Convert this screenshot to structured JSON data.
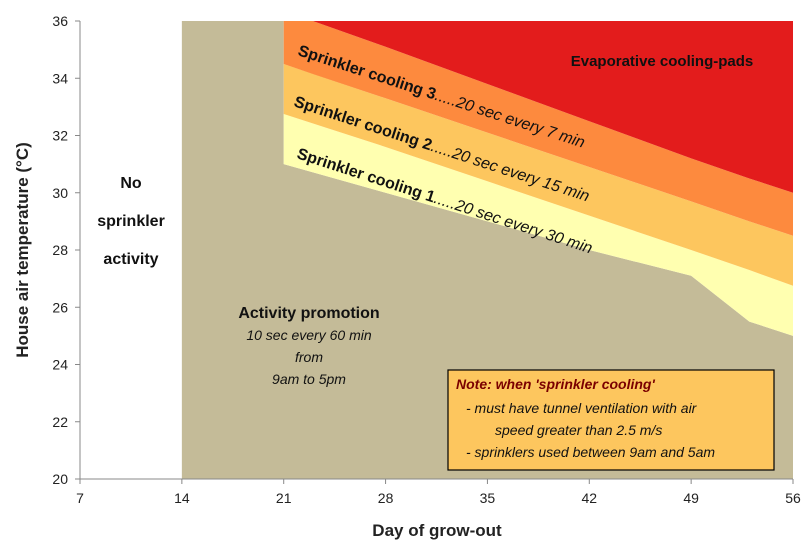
{
  "chart_data": {
    "type": "area",
    "x_label": "Day of grow-out",
    "y_label": "House air temperature (°C)",
    "xlim": [
      7,
      56
    ],
    "xticks": [
      7,
      14,
      21,
      28,
      35,
      42,
      49,
      56
    ],
    "ylim": [
      20,
      36
    ],
    "yticks": [
      20,
      22,
      24,
      26,
      28,
      30,
      32,
      34,
      36
    ],
    "regions": [
      {
        "label": "Activity promotion",
        "detail": [
          "10 sec every 60 min",
          "from",
          "9am to 5pm"
        ],
        "color": "#c4bb98",
        "x": [
          14,
          21,
          21,
          28,
          35,
          42,
          49,
          53,
          56
        ],
        "upper": [
          36,
          36,
          31,
          30,
          29,
          28,
          27.1,
          25.5,
          25
        ],
        "lower": [
          20,
          20,
          20,
          20,
          20,
          20,
          20,
          20,
          20
        ]
      },
      {
        "label": "Sprinkler cooling 1",
        "detail": [
          ".....20 sec every 30 min"
        ],
        "color": "#ffffb0",
        "x": [
          21,
          28,
          35,
          42,
          49,
          53,
          56
        ],
        "upper": [
          32.75,
          31.6,
          30.4,
          29.2,
          28,
          27.3,
          26.75
        ],
        "lower": [
          31,
          30,
          29,
          28,
          27.1,
          25.5,
          25
        ]
      },
      {
        "label": "Sprinkler cooling 2",
        "detail": [
          ".....20 sec every 15 min"
        ],
        "color": "#fdc65e",
        "x": [
          21,
          28,
          35,
          42,
          49,
          53,
          56
        ],
        "upper": [
          34.5,
          33.3,
          32.1,
          30.9,
          29.7,
          29,
          28.5
        ],
        "lower": [
          32.75,
          31.6,
          30.4,
          29.2,
          28,
          27.3,
          26.75
        ]
      },
      {
        "label": "Sprinkler cooling 3",
        "detail": [
          ".....20 sec every 7 min"
        ],
        "color": "#fd8a3e",
        "x": [
          21,
          23,
          28,
          35,
          42,
          49,
          53,
          56
        ],
        "upper": [
          36,
          36,
          35.1,
          33.8,
          32.5,
          31.2,
          30.5,
          30
        ],
        "lower": [
          34.5,
          34.15,
          33.3,
          32.1,
          30.9,
          29.7,
          29,
          28.5
        ]
      },
      {
        "label": "Evaporative cooling-pads",
        "detail": [],
        "color": "#e31c1c",
        "x": [
          23,
          28,
          35,
          42,
          49,
          53,
          56
        ],
        "upper": [
          36,
          36,
          36,
          36,
          36,
          36,
          36
        ],
        "lower": [
          36,
          35.1,
          33.8,
          32.5,
          31.2,
          30.5,
          30
        ]
      }
    ],
    "no_activity_label": [
      "No",
      "sprinkler",
      "activity"
    ],
    "note": {
      "title": "Note: when 'sprinkler cooling'",
      "lines": [
        "- must have tunnel ventilation with air",
        "speed greater than 2.5 m/s",
        "- sprinklers used between 9am and 5am"
      ]
    }
  }
}
